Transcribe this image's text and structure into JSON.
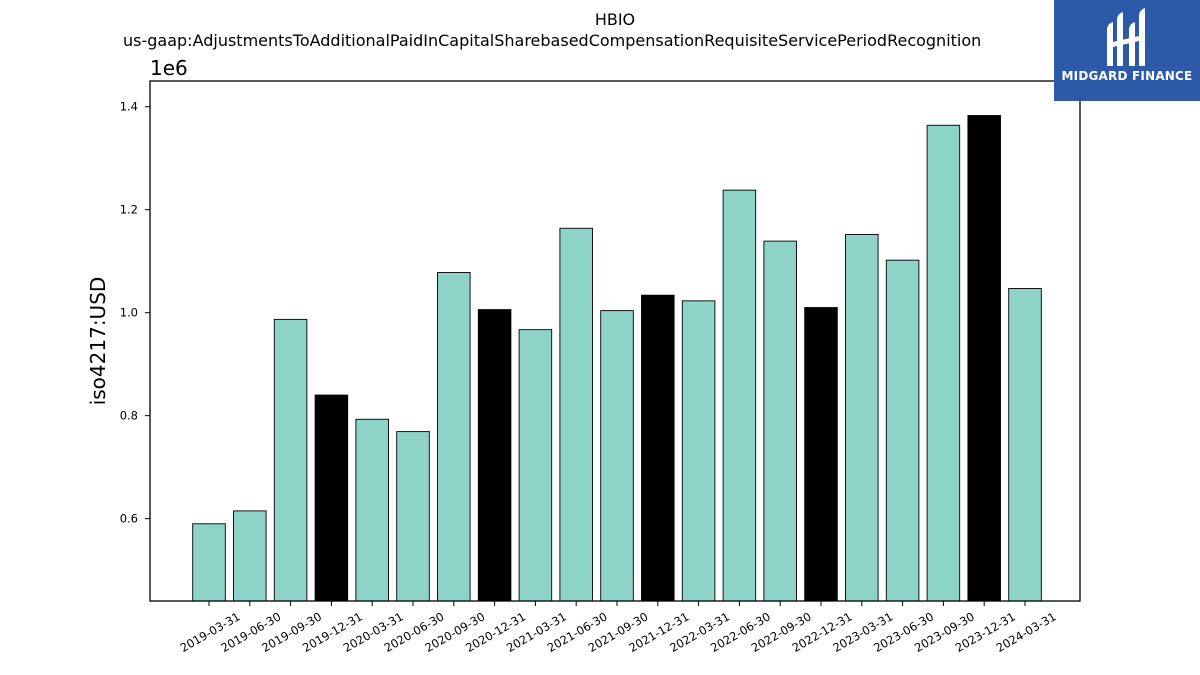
{
  "chart_data": {
    "type": "bar",
    "title": "HBIO",
    "subtitle": "us-gaap:AdjustmentsToAdditionalPaidInCapitalSharebasedCompensationRequisiteServicePeriodRecognition",
    "ylabel": "iso4217:USD",
    "xlabel": "",
    "offset_text": "1e6",
    "y_scale": 1000000,
    "ylim": [
      440000,
      1450000
    ],
    "yticks": [
      600000,
      800000,
      1000000,
      1200000,
      1400000
    ],
    "ytick_labels": [
      "0.6",
      "0.8",
      "1.0",
      "1.2",
      "1.4"
    ],
    "grid": false,
    "categories": [
      "2019-03-31",
      "2019-06-30",
      "2019-09-30",
      "2019-12-31",
      "2020-03-31",
      "2020-06-30",
      "2020-09-30",
      "2020-12-31",
      "2021-03-31",
      "2021-06-30",
      "2021-09-30",
      "2021-12-31",
      "2022-03-31",
      "2022-06-30",
      "2022-09-30",
      "2022-12-31",
      "2023-03-31",
      "2023-06-30",
      "2023-09-30",
      "2023-12-31",
      "2024-03-31"
    ],
    "values": [
      590000,
      615000,
      987000,
      840000,
      793000,
      769000,
      1078000,
      1006000,
      967000,
      1164000,
      1004000,
      1034000,
      1023000,
      1238000,
      1139000,
      1010000,
      1152000,
      1102000,
      1364000,
      1383000,
      1047000
    ],
    "colors": {
      "quarter": "#8dd3c7",
      "year_end": "#000000",
      "edge": "#000000"
    },
    "bar_types": [
      "quarter",
      "quarter",
      "quarter",
      "year_end",
      "quarter",
      "quarter",
      "quarter",
      "year_end",
      "quarter",
      "quarter",
      "quarter",
      "year_end",
      "quarter",
      "quarter",
      "quarter",
      "year_end",
      "quarter",
      "quarter",
      "quarter",
      "year_end",
      "quarter"
    ]
  },
  "logo": {
    "text": "MIDGARD FINANCE",
    "color": "#2d5aa8",
    "icon": "midgard-logo-icon"
  }
}
